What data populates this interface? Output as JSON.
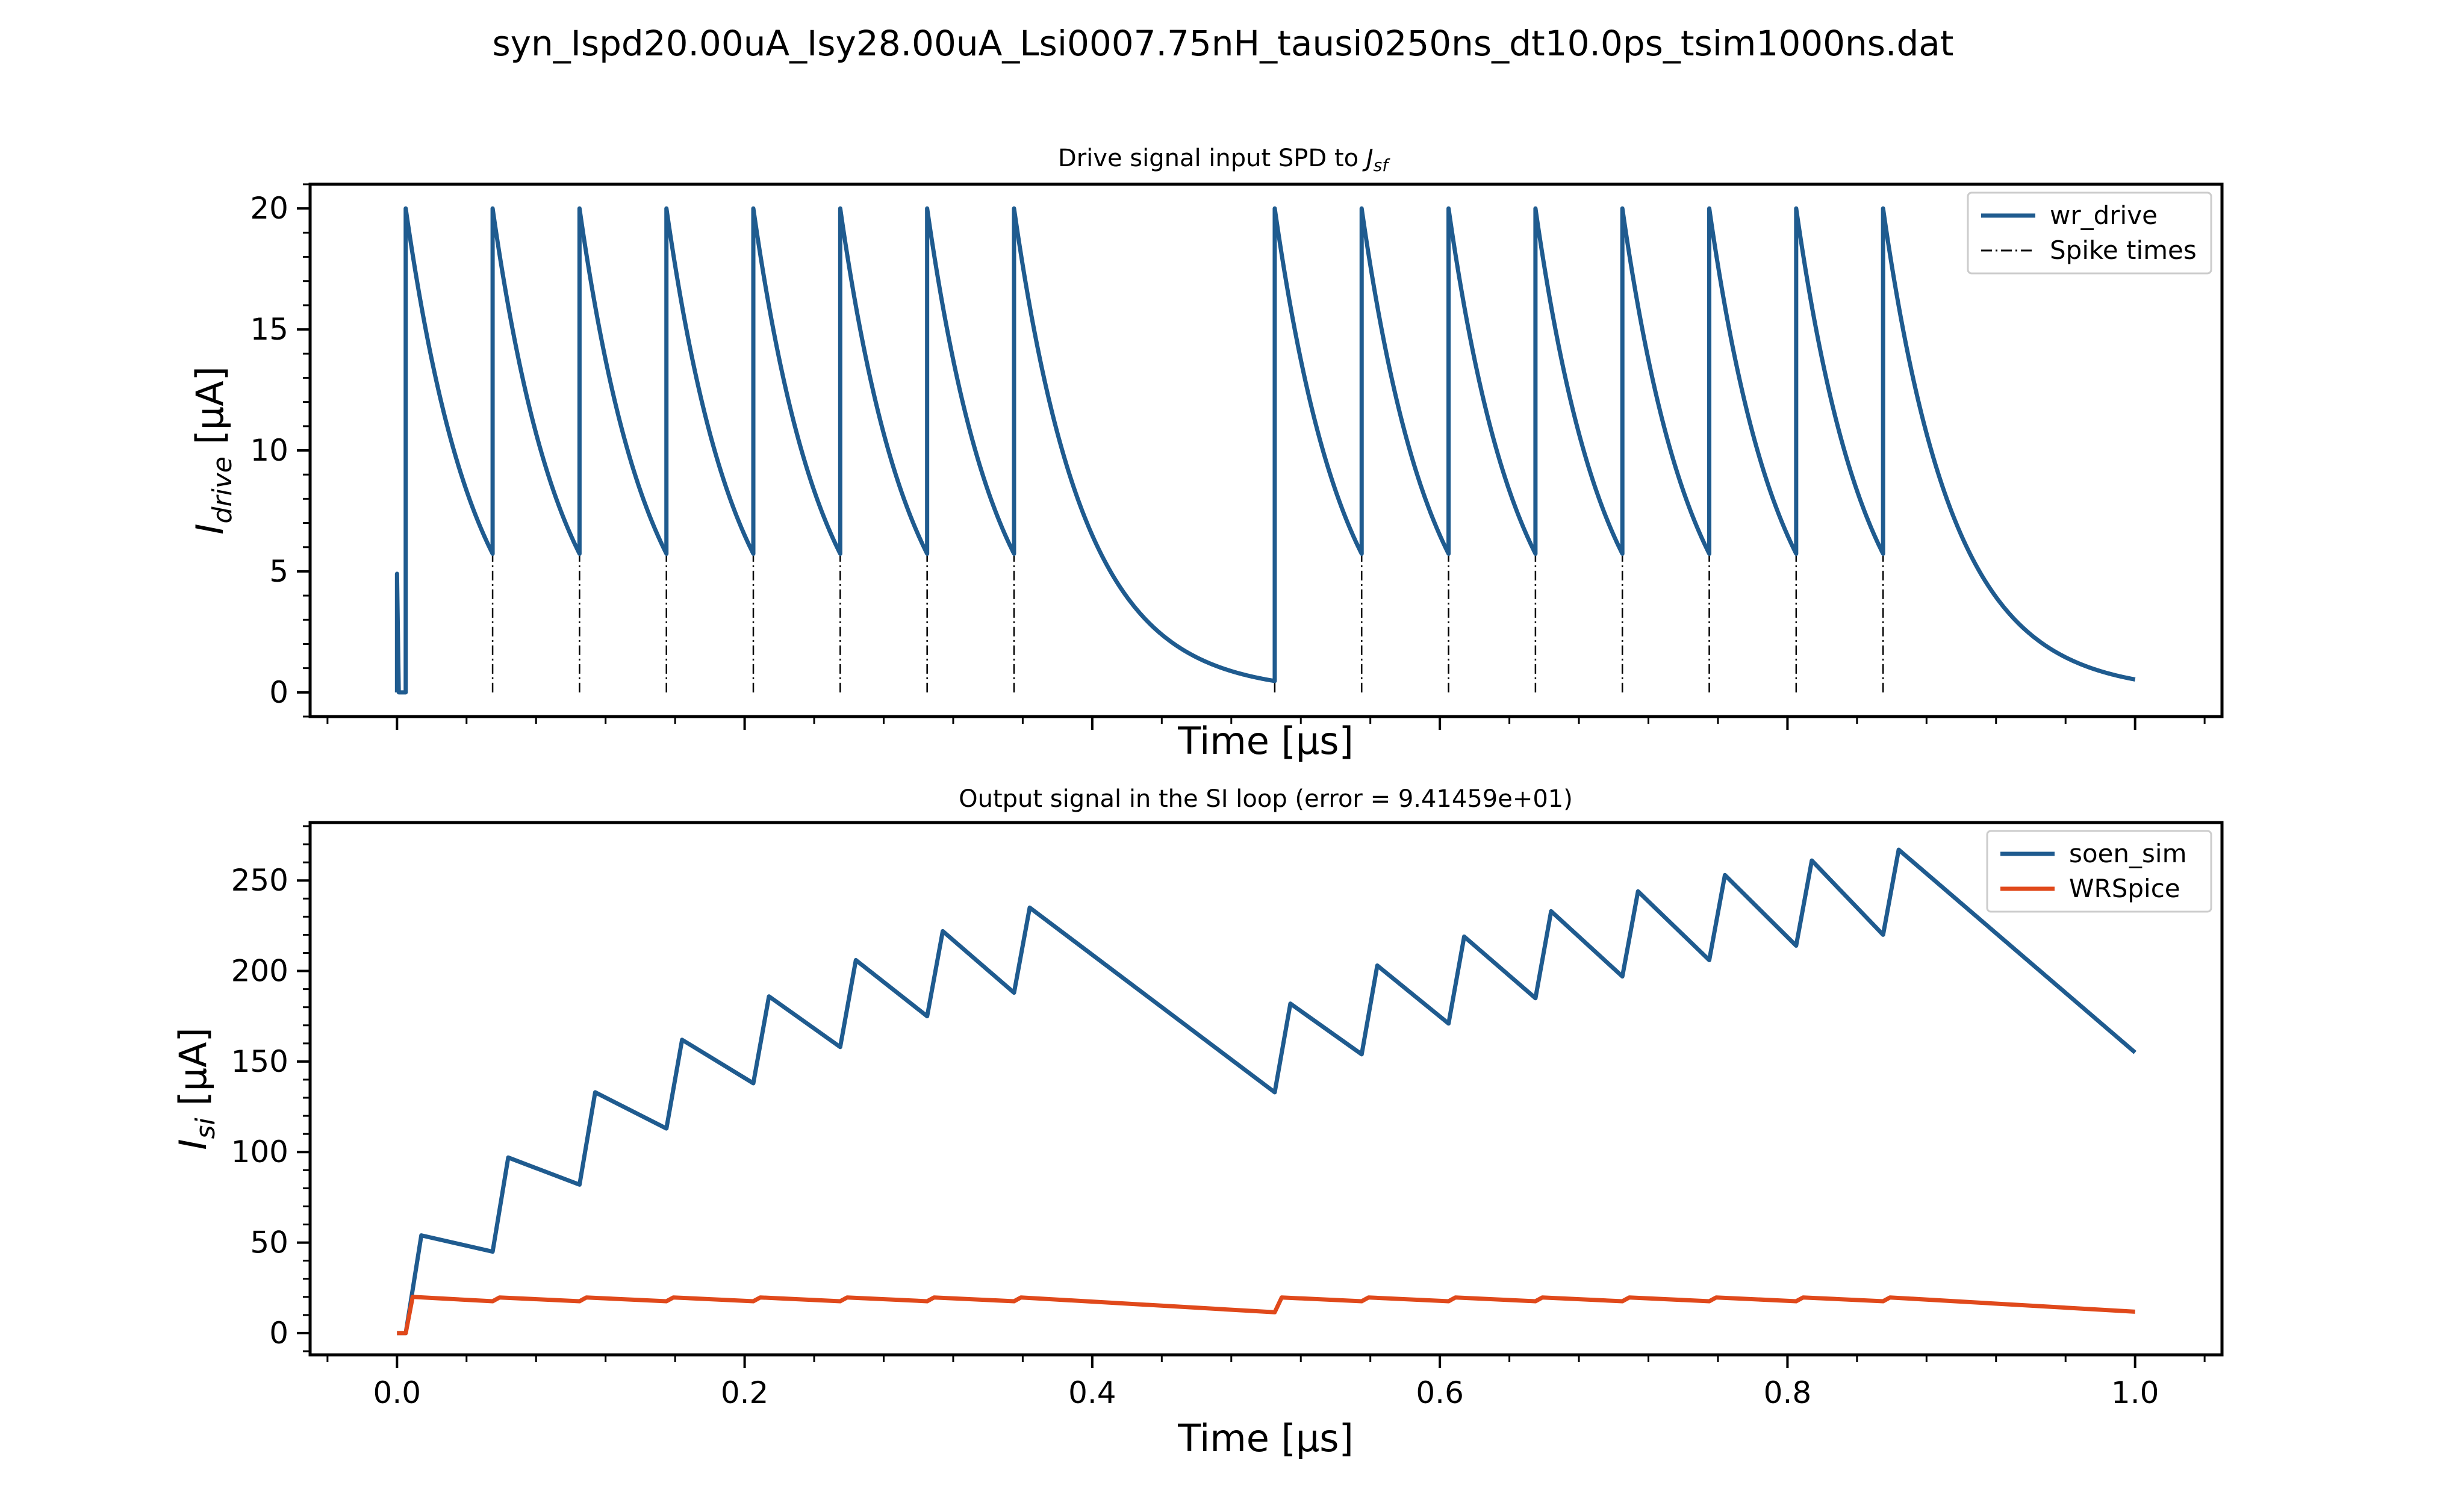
{
  "figure": {
    "suptitle": "syn_Ispd20.00uA_Isy28.00uA_Lsi0007.75nH_tausi0250ns_dt10.0ps_tsim1000ns.dat"
  },
  "colors": {
    "blue": "#1f5b8f",
    "orange": "#e0491b",
    "black": "#000000"
  },
  "chart_data": [
    {
      "type": "line",
      "title_prefix": "Drive signal input SPD to ",
      "title_math": "J",
      "title_math_sub": "sf",
      "xlabel": "Time [μs]",
      "ylabel_main": "I",
      "ylabel_sub": "drive",
      "ylabel_unit": " [μA]",
      "xlim": [
        -0.05,
        1.05
      ],
      "ylim": [
        -1,
        21
      ],
      "yticks": [
        0,
        5,
        10,
        15,
        20
      ],
      "ytick_labels": [
        "0",
        "5",
        "10",
        "15",
        "20"
      ],
      "xticks": [
        0.0,
        0.2,
        0.4,
        0.6,
        0.8,
        1.0
      ],
      "xtick_labels_visible": false,
      "grid": false,
      "legend": "top-right",
      "legend_entries": [
        {
          "label": "wr_drive",
          "color": "#1f5b8f",
          "style": "solid"
        },
        {
          "label": "Spike times",
          "color": "#000000",
          "style": "dashdot"
        }
      ],
      "drive_model": {
        "peak": 20.0,
        "tau_us": 0.04,
        "start_value": 4.9,
        "start_t": 0.0,
        "first_spike_t": 0.005,
        "end_t": 1.0
      },
      "spike_times": [
        0.005,
        0.055,
        0.105,
        0.155,
        0.205,
        0.255,
        0.305,
        0.355,
        0.505,
        0.555,
        0.605,
        0.655,
        0.705,
        0.755,
        0.805,
        0.855
      ]
    },
    {
      "type": "line",
      "title": "Output signal in the SI loop (error = 9.41459e+01)",
      "xlabel": "Time [μs]",
      "ylabel_main": "I",
      "ylabel_sub": "si",
      "ylabel_unit": " [μA]",
      "xlim": [
        -0.05,
        1.05
      ],
      "ylim": [
        -12,
        282
      ],
      "yticks": [
        0,
        50,
        100,
        150,
        200,
        250
      ],
      "ytick_labels": [
        "0",
        "50",
        "100",
        "150",
        "200",
        "250"
      ],
      "xticks": [
        0.0,
        0.2,
        0.4,
        0.6,
        0.8,
        1.0
      ],
      "xtick_labels": [
        "0.0",
        "0.2",
        "0.4",
        "0.6",
        "0.8",
        "1.0"
      ],
      "grid": false,
      "legend": "top-right",
      "legend_entries": [
        {
          "label": "soen_sim",
          "color": "#1f5b8f",
          "style": "solid"
        },
        {
          "label": "WRSpice",
          "color": "#e0491b",
          "style": "solid"
        }
      ],
      "series": [
        {
          "name": "soen_sim",
          "color": "#1f5b8f",
          "points": [
            [
              0.0,
              0
            ],
            [
              0.005,
              0
            ],
            [
              0.014,
              54
            ],
            [
              0.055,
              45
            ],
            [
              0.064,
              97
            ],
            [
              0.105,
              82
            ],
            [
              0.114,
              133
            ],
            [
              0.155,
              113
            ],
            [
              0.164,
              162
            ],
            [
              0.205,
              138
            ],
            [
              0.214,
              186
            ],
            [
              0.255,
              158
            ],
            [
              0.264,
              206
            ],
            [
              0.305,
              175
            ],
            [
              0.314,
              222
            ],
            [
              0.355,
              188
            ],
            [
              0.364,
              235
            ],
            [
              0.505,
              133
            ],
            [
              0.514,
              182
            ],
            [
              0.555,
              154
            ],
            [
              0.564,
              203
            ],
            [
              0.605,
              171
            ],
            [
              0.614,
              219
            ],
            [
              0.655,
              185
            ],
            [
              0.664,
              233
            ],
            [
              0.705,
              197
            ],
            [
              0.714,
              244
            ],
            [
              0.755,
              206
            ],
            [
              0.764,
              253
            ],
            [
              0.805,
              214
            ],
            [
              0.814,
              261
            ],
            [
              0.855,
              220
            ],
            [
              0.864,
              267
            ],
            [
              1.0,
              155
            ]
          ]
        },
        {
          "name": "WRSpice",
          "color": "#e0491b",
          "points": [
            [
              0.0,
              0
            ],
            [
              0.005,
              0
            ],
            [
              0.009,
              20
            ],
            [
              0.055,
              17.6
            ],
            [
              0.059,
              19.7
            ],
            [
              0.105,
              17.6
            ],
            [
              0.109,
              19.7
            ],
            [
              0.155,
              17.6
            ],
            [
              0.159,
              19.7
            ],
            [
              0.205,
              17.6
            ],
            [
              0.209,
              19.7
            ],
            [
              0.255,
              17.6
            ],
            [
              0.259,
              19.7
            ],
            [
              0.305,
              17.6
            ],
            [
              0.309,
              19.7
            ],
            [
              0.355,
              17.6
            ],
            [
              0.359,
              19.7
            ],
            [
              0.505,
              11.5
            ],
            [
              0.509,
              19.7
            ],
            [
              0.555,
              17.6
            ],
            [
              0.559,
              19.7
            ],
            [
              0.605,
              17.6
            ],
            [
              0.609,
              19.7
            ],
            [
              0.655,
              17.6
            ],
            [
              0.659,
              19.7
            ],
            [
              0.705,
              17.6
            ],
            [
              0.709,
              19.7
            ],
            [
              0.755,
              17.6
            ],
            [
              0.759,
              19.7
            ],
            [
              0.805,
              17.6
            ],
            [
              0.809,
              19.7
            ],
            [
              0.855,
              17.6
            ],
            [
              0.859,
              19.7
            ],
            [
              1.0,
              11.8
            ]
          ]
        }
      ]
    }
  ]
}
